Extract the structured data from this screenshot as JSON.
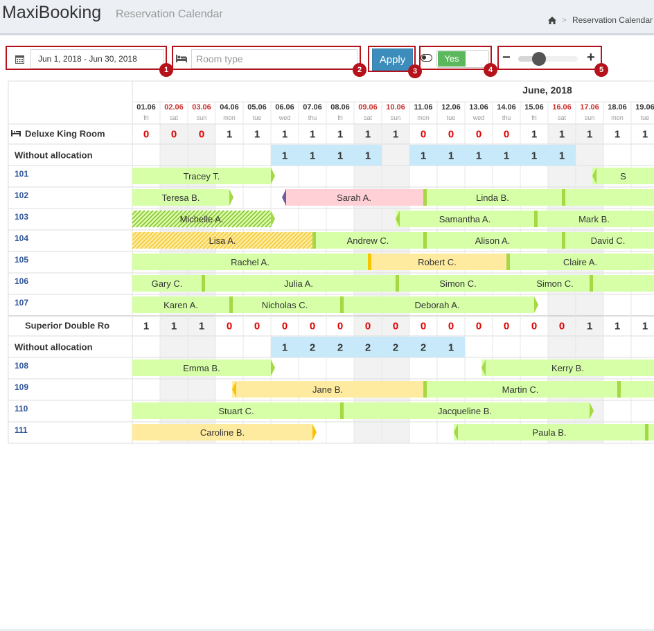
{
  "app": {
    "title": "MaxiBooking",
    "subtitle": "Reservation Calendar"
  },
  "breadcrumb": {
    "home_icon": "home-icon",
    "current": "Reservation Calendar"
  },
  "toolbar": {
    "date_range": "Jun 1, 2018 - Jun 30, 2018",
    "room_type_placeholder": "Room type",
    "apply_label": "Apply",
    "toggle_label": "Yes",
    "zoom_level": 0.35
  },
  "markers": [
    "1",
    "2",
    "3",
    "4",
    "5"
  ],
  "calendar": {
    "month": "June, 2018",
    "days": [
      [
        "01.06",
        "fri",
        0
      ],
      [
        "02.06",
        "sat",
        1
      ],
      [
        "03.06",
        "sun",
        1
      ],
      [
        "04.06",
        "mon",
        0
      ],
      [
        "05.06",
        "tue",
        0
      ],
      [
        "06.06",
        "wed",
        0
      ],
      [
        "07.06",
        "thu",
        0
      ],
      [
        "08.06",
        "fri",
        0
      ],
      [
        "09.06",
        "sat",
        1
      ],
      [
        "10.06",
        "sun",
        1
      ],
      [
        "11.06",
        "mon",
        0
      ],
      [
        "12.06",
        "tue",
        0
      ],
      [
        "13.06",
        "wed",
        0
      ],
      [
        "14.06",
        "thu",
        0
      ],
      [
        "15.06",
        "fri",
        0
      ],
      [
        "16.06",
        "sat",
        1
      ],
      [
        "17.06",
        "sun",
        1
      ],
      [
        "18.06",
        "mon",
        0
      ],
      [
        "19.06",
        "tue",
        0
      ]
    ],
    "colors": {
      "weekend": "#c9302c",
      "zero": "#dd0000",
      "booking_green": "#d6ffa8",
      "booking_yellow": "#ffeba0",
      "booking_pink": "#ffd1d6",
      "edge_green": "#a6d846",
      "edge_yellow": "#f8c400",
      "edge_purple": "#6b5d9a",
      "unalloc": "#c7e9f9"
    },
    "groups": [
      {
        "name": "Deluxe King Room",
        "availability": [
          0,
          0,
          0,
          1,
          1,
          1,
          1,
          1,
          1,
          1,
          0,
          0,
          0,
          0,
          1,
          1,
          1,
          1,
          1
        ],
        "unallocated": [
          null,
          null,
          null,
          null,
          null,
          1,
          1,
          1,
          1,
          null,
          1,
          1,
          1,
          1,
          1,
          1,
          null,
          null,
          null
        ],
        "rooms": [
          {
            "number": "101",
            "bookings": [
              [
                "Tracey T.",
                0,
                5,
                "green",
                0,
                "R"
              ],
              [
                "S",
                16.6,
                19,
                "green",
                "L",
                0
              ]
            ]
          },
          {
            "number": "102",
            "bookings": [
              [
                "Teresa B.",
                0,
                3.5,
                "green",
                0,
                "R"
              ],
              [
                "Sarah A.",
                5.5,
                10.5,
                "pink",
                "P",
                0
              ],
              [
                "Linda B.",
                10.5,
                15.5,
                "green",
                "B",
                0
              ],
              [
                "",
                15.5,
                19,
                "green",
                "B",
                0
              ]
            ]
          },
          {
            "number": "103",
            "bookings": [
              [
                "Michelle A.",
                0,
                5,
                "green",
                0,
                "R",
                "hatch"
              ],
              [
                "Samantha A.",
                9.5,
                14.5,
                "green",
                "L",
                0
              ],
              [
                "Mark B.",
                14.5,
                19,
                "green",
                "B",
                0
              ]
            ]
          },
          {
            "number": "104",
            "bookings": [
              [
                "Lisa A.",
                0,
                6.5,
                "yellow",
                0,
                0,
                "hatch"
              ],
              [
                "Andrew C.",
                6.5,
                10.5,
                "green",
                "B",
                0
              ],
              [
                "Alison A.",
                10.5,
                15.5,
                "green",
                "B",
                0
              ],
              [
                "David C.",
                15.5,
                19,
                "green",
                "B",
                0
              ]
            ]
          },
          {
            "number": "105",
            "bookings": [
              [
                "Rachel A.",
                0,
                8.5,
                "green",
                0,
                0
              ],
              [
                "Robert C.",
                8.5,
                13.5,
                "yellow",
                "Y",
                0
              ],
              [
                "Claire A.",
                13.5,
                19,
                "green",
                "B",
                0
              ]
            ]
          },
          {
            "number": "106",
            "bookings": [
              [
                "Gary C.",
                0,
                2.5,
                "green",
                0,
                0
              ],
              [
                "Julia A.",
                2.5,
                9.5,
                "green",
                "B",
                0
              ],
              [
                "Simon C.",
                9.5,
                14,
                "green",
                "B",
                0
              ],
              [
                "Simon C.",
                14,
                16.5,
                "green",
                0,
                0
              ],
              [
                "",
                16.5,
                19,
                "green",
                "B",
                0
              ]
            ]
          },
          {
            "number": "107",
            "bookings": [
              [
                "Karen A.",
                0,
                3.5,
                "green",
                0,
                0
              ],
              [
                "Nicholas C.",
                3.5,
                7.5,
                "green",
                "B",
                0
              ],
              [
                "Deborah A.",
                7.5,
                14.5,
                "green",
                "B",
                "R"
              ]
            ]
          }
        ]
      },
      {
        "name": "Superior Double Ro",
        "availability": [
          1,
          1,
          1,
          0,
          0,
          0,
          0,
          0,
          0,
          0,
          0,
          0,
          0,
          0,
          0,
          0,
          1,
          1,
          1
        ],
        "unallocated": [
          null,
          null,
          null,
          null,
          null,
          1,
          2,
          2,
          2,
          2,
          2,
          1,
          null,
          null,
          null,
          null,
          null,
          null,
          null
        ],
        "rooms": [
          {
            "number": "108",
            "bookings": [
              [
                "Emma B.",
                0,
                5,
                "green",
                0,
                "R"
              ],
              [
                "Kerry B.",
                12.6,
                19,
                "green",
                "L",
                0
              ]
            ]
          },
          {
            "number": "109",
            "bookings": [
              [
                "Jane B.",
                3.6,
                10.5,
                "yellow",
                "L",
                0
              ],
              [
                "Martin C.",
                10.5,
                17.5,
                "green",
                "B",
                0
              ],
              [
                "",
                17.5,
                19,
                "green",
                "B",
                0
              ]
            ]
          },
          {
            "number": "110",
            "bookings": [
              [
                "Stuart C.",
                0,
                7.5,
                "green",
                0,
                0
              ],
              [
                "Jacqueline B.",
                7.5,
                16.5,
                "green",
                "B",
                "R"
              ]
            ]
          },
          {
            "number": "111",
            "bookings": [
              [
                "Caroline B.",
                0,
                6.5,
                "yellow",
                0,
                "Ry"
              ],
              [
                "Paula B.",
                11.6,
                18.5,
                "green",
                "L",
                0
              ],
              [
                "",
                18.5,
                19,
                "green",
                "B",
                0
              ]
            ]
          }
        ]
      }
    ]
  }
}
